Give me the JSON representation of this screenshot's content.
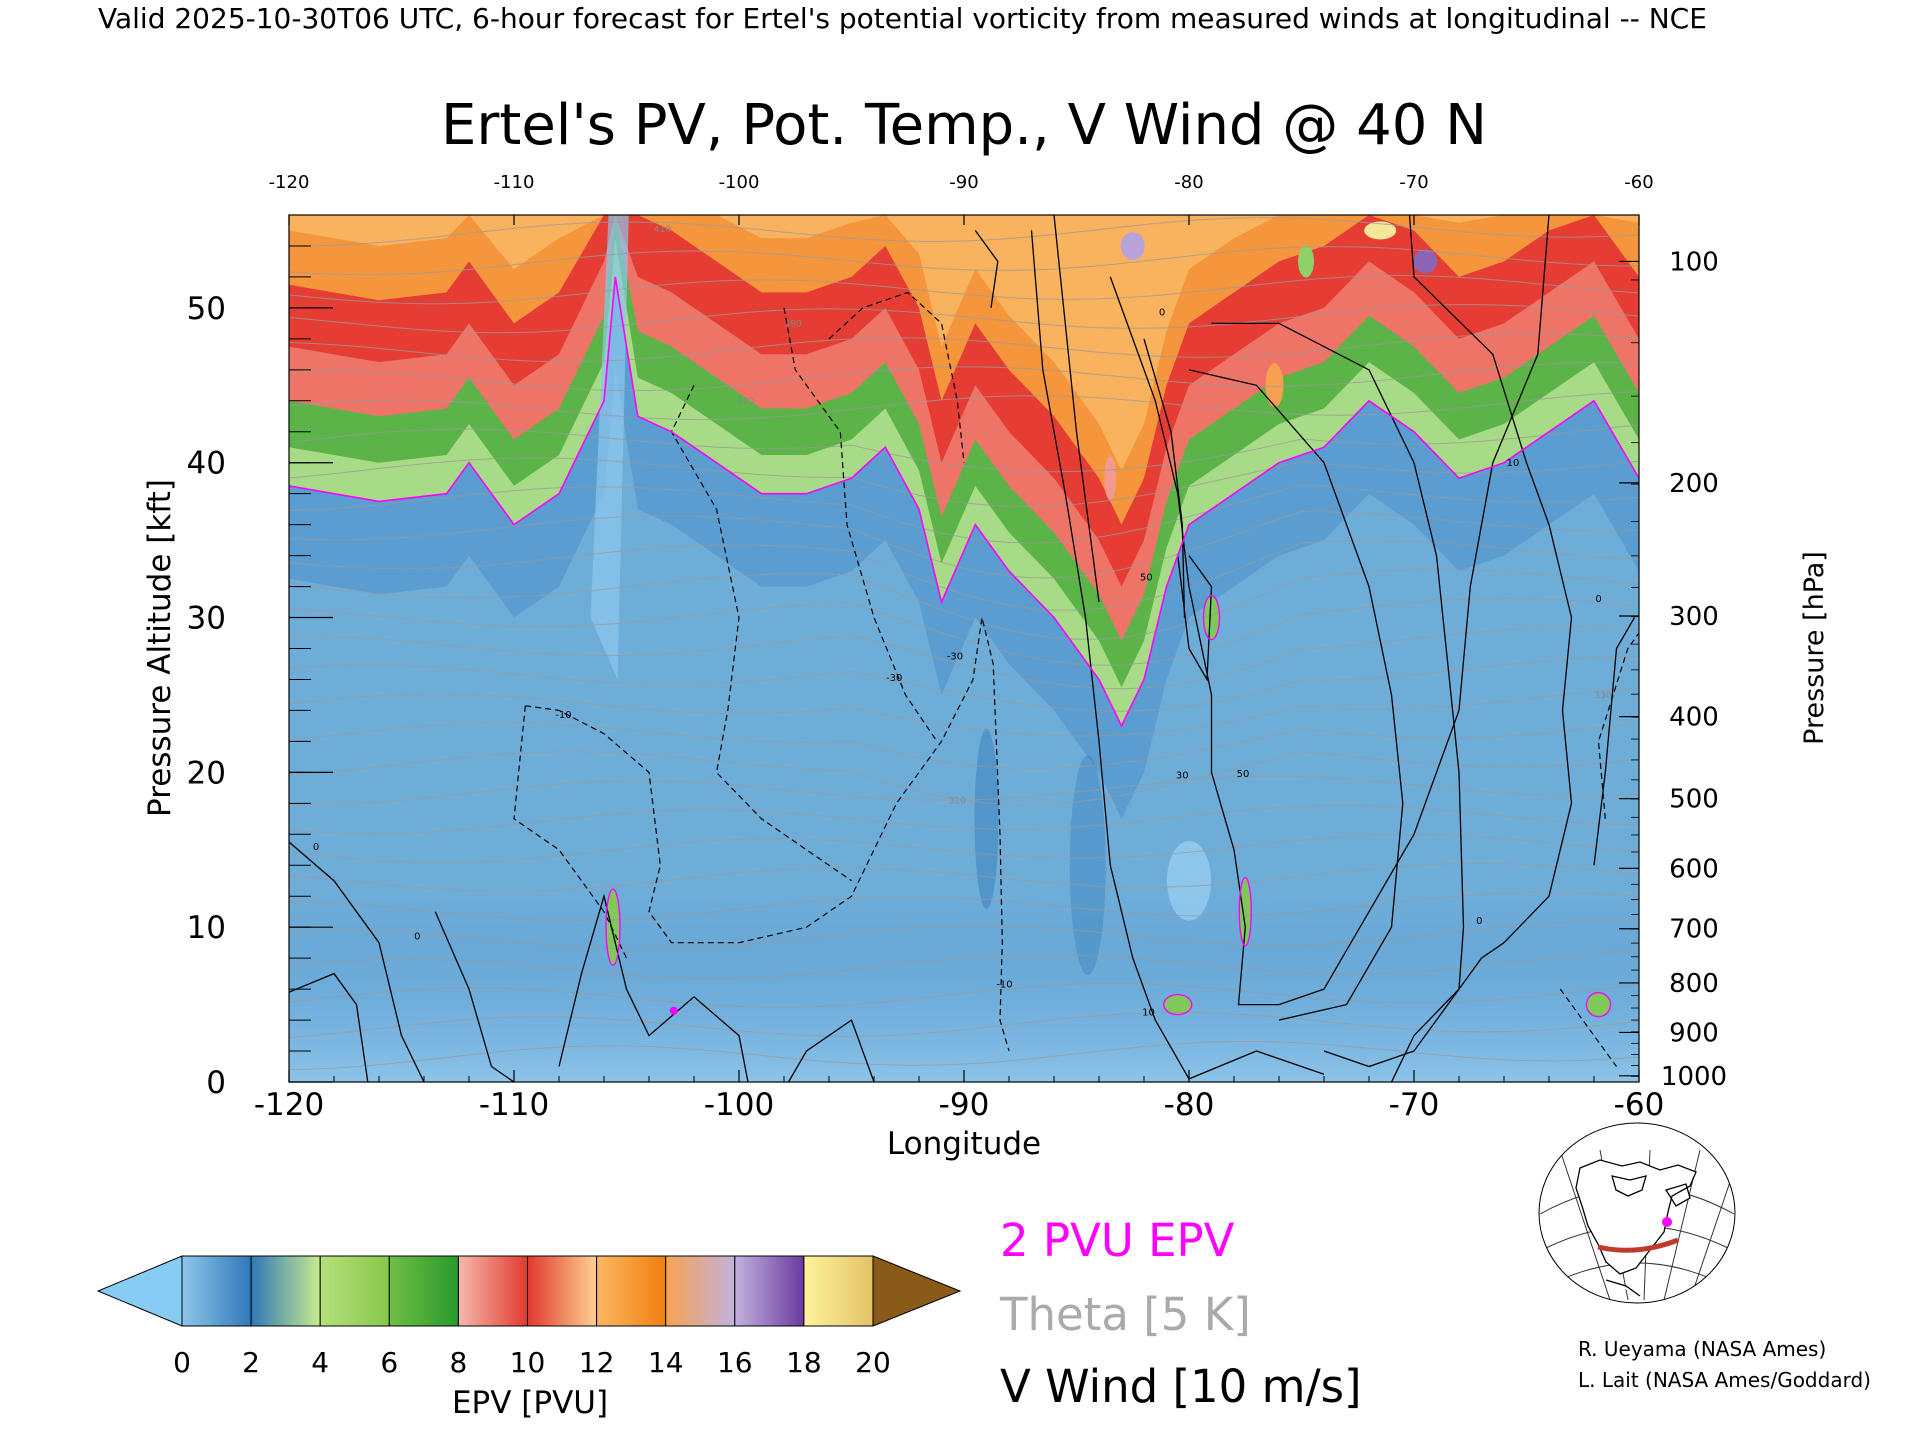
{
  "header": {
    "valid_line": "Valid 2025-10-30T06 UTC, 6-hour forecast for Ertel's potential vorticity from measured winds at longitudinal -- NCE"
  },
  "chart_data": {
    "type": "heatmap",
    "title": "Ertel's PV, Pot. Temp., V Wind @ 40 N",
    "xlabel": "Longitude",
    "ylabel_left": "Pressure Altitude [kft]",
    "ylabel_right": "Pressure [hPa]",
    "xlim": [
      -120,
      -60
    ],
    "ylim": [
      0,
      56
    ],
    "x_ticks_bottom": [
      "-120",
      "-110",
      "-100",
      "-90",
      "-80",
      "-70",
      "-60"
    ],
    "x_ticks_top": [
      "-120",
      "-110",
      "-100",
      "-90",
      "-80",
      "-70",
      "-60"
    ],
    "y_ticks_left": [
      "0",
      "10",
      "20",
      "30",
      "40",
      "50"
    ],
    "y_ticks_right": [
      {
        "label": "100",
        "kft": 53.0
      },
      {
        "label": "200",
        "kft": 38.7
      },
      {
        "label": "300",
        "kft": 30.1
      },
      {
        "label": "400",
        "kft": 23.6
      },
      {
        "label": "500",
        "kft": 18.3
      },
      {
        "label": "600",
        "kft": 13.8
      },
      {
        "label": "700",
        "kft": 9.9
      },
      {
        "label": "800",
        "kft": 6.4
      },
      {
        "label": "900",
        "kft": 3.2
      },
      {
        "label": "1000",
        "kft": 0.4
      }
    ],
    "colorbar": {
      "label": "EPV [PVU]",
      "ticks": [
        "0",
        "2",
        "4",
        "6",
        "8",
        "10",
        "12",
        "14",
        "16",
        "18",
        "20"
      ],
      "under_color": "#87ccf2",
      "over_color": "#8a5a19",
      "segments": [
        [
          "#8ec6ea",
          "#2f78b8"
        ],
        [
          "#2f78b8",
          "#c9ec8e"
        ],
        [
          "#b5e07c",
          "#86c94a"
        ],
        [
          "#6fbe45",
          "#289a2c"
        ],
        [
          "#f5b9ac",
          "#e0392f"
        ],
        [
          "#e0392f",
          "#fdd291"
        ],
        [
          "#fcb862",
          "#f07f10"
        ],
        [
          "#f7a350",
          "#c2b2de"
        ],
        [
          "#c2b2de",
          "#6b3a9e"
        ],
        [
          "#fdf39b",
          "#e5c267"
        ]
      ]
    },
    "legend": [
      {
        "label": "2 PVU EPV",
        "color": "#ff00ff"
      },
      {
        "label": "Theta [5 K]",
        "color": "#aaaaaa"
      },
      {
        "label": "V Wind [10 m/s]",
        "color": "#000000"
      }
    ],
    "pv_profile": {
      "lon": [
        -120,
        -116,
        -113,
        -112,
        -110,
        -108,
        -106,
        -105.5,
        -104.5,
        -103,
        -101,
        -99,
        -97,
        -95,
        -93.5,
        -92,
        -91,
        -89.5,
        -88,
        -86,
        -84,
        -83,
        -82,
        -81,
        -80,
        -78,
        -76,
        -74,
        -72,
        -70,
        -68,
        -66,
        -64,
        -62,
        -60
      ],
      "tropopause_kft": [
        38.5,
        37.5,
        38,
        40,
        36,
        38,
        44,
        52,
        43,
        42,
        40,
        38,
        38,
        39,
        41,
        37,
        31,
        36,
        33,
        30,
        26,
        23,
        26,
        32,
        36,
        38,
        40,
        41,
        44,
        42,
        39,
        40,
        42,
        44,
        39
      ]
    },
    "contour_labels": [
      {
        "text": "-10",
        "lon": -107.8,
        "kft": 23.5
      },
      {
        "text": "-10",
        "lon": -88.2,
        "kft": 6.1
      },
      {
        "text": "-30",
        "lon": -90.4,
        "kft": 27.3
      },
      {
        "text": "-30",
        "lon": -93.1,
        "kft": 25.9
      },
      {
        "text": "0",
        "lon": -118.8,
        "kft": 15.0
      },
      {
        "text": "0",
        "lon": -114.3,
        "kft": 9.2
      },
      {
        "text": "0",
        "lon": -81.2,
        "kft": 49.5
      },
      {
        "text": "0",
        "lon": -61.8,
        "kft": 31.0
      },
      {
        "text": "0",
        "lon": -67.1,
        "kft": 10.2
      },
      {
        "text": "10",
        "lon": -81.8,
        "kft": 4.3
      },
      {
        "text": "10",
        "lon": -65.6,
        "kft": 39.8
      },
      {
        "text": "30",
        "lon": -80.3,
        "kft": 19.6
      },
      {
        "text": "50",
        "lon": -77.6,
        "kft": 19.7
      },
      {
        "text": "50",
        "lon": -81.9,
        "kft": 32.4
      }
    ],
    "theta_labels": [
      {
        "text": "310",
        "lon": -90.3,
        "kft": 18.0
      },
      {
        "text": "330",
        "lon": -61.6,
        "kft": 24.8
      },
      {
        "text": "370",
        "lon": -99.7,
        "kft": 43.8
      },
      {
        "text": "390",
        "lon": -97.6,
        "kft": 48.8
      },
      {
        "text": "410",
        "lon": -103.4,
        "kft": 54.9
      }
    ]
  },
  "inset_map": {
    "caption": "Locator map of North America with the 40 N cross-section path"
  },
  "credits": {
    "line1": "R. Ueyama (NASA Ames)",
    "line2": "L. Lait (NASA Ames/Goddard)"
  }
}
